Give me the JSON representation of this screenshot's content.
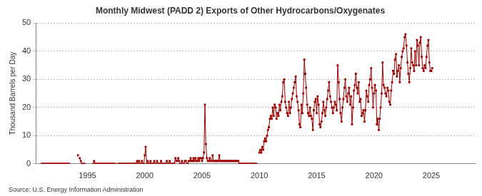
{
  "chart_data": {
    "type": "line",
    "title": "Monthly Midwest (PADD 2) Exports of Other Hydrocarbons/Oxygenates",
    "y_label": "Thousand Barrels per Day",
    "source": "Source: U.S. Energy Information Administration",
    "color": "#990000",
    "marker": "square",
    "grid": true,
    "xlim": [
      1990.5,
      2028.8
    ],
    "xticks": [
      1995,
      2000,
      2005,
      2010,
      2015,
      2020,
      2025
    ],
    "ylim": [
      0,
      50
    ],
    "yticks": [
      0,
      10,
      20,
      30,
      40,
      50
    ],
    "x": [
      1991.0,
      1991.08,
      1991.17,
      1991.25,
      1991.33,
      1991.42,
      1991.5,
      1991.58,
      1991.67,
      1991.75,
      1991.83,
      1991.92,
      1992.0,
      1992.08,
      1992.17,
      1992.25,
      1992.33,
      1992.42,
      1992.5,
      1992.58,
      1992.67,
      1992.75,
      1992.83,
      1992.92,
      1993.0,
      1993.08,
      1993.17,
      1993.25,
      1993.33,
      1993.42,
      1993.5,
      1993.58,
      1993.67,
      1993.75,
      1993.83,
      1993.92,
      1994.0,
      1994.08,
      1994.17,
      1994.25,
      1994.33,
      1994.42,
      1994.5,
      1994.58,
      1994.67,
      1994.75,
      1994.83,
      1994.92,
      1995.0,
      1995.08,
      1995.17,
      1995.25,
      1995.33,
      1995.42,
      1995.5,
      1995.58,
      1995.67,
      1995.75,
      1995.83,
      1995.92,
      1996.0,
      1996.08,
      1996.17,
      1996.25,
      1996.33,
      1996.42,
      1996.5,
      1996.58,
      1996.67,
      1996.75,
      1996.83,
      1996.92,
      1997.0,
      1997.08,
      1997.17,
      1997.25,
      1997.33,
      1997.42,
      1997.5,
      1997.58,
      1997.67,
      1997.75,
      1997.83,
      1997.92,
      1998.0,
      1998.08,
      1998.17,
      1998.25,
      1998.33,
      1998.42,
      1998.5,
      1998.58,
      1998.67,
      1998.75,
      1998.83,
      1998.92,
      1999.0,
      1999.08,
      1999.17,
      1999.25,
      1999.33,
      1999.42,
      1999.5,
      1999.58,
      1999.67,
      1999.75,
      1999.83,
      1999.92,
      2000.0,
      2000.08,
      2000.17,
      2000.25,
      2000.33,
      2000.42,
      2000.5,
      2000.58,
      2000.67,
      2000.75,
      2000.83,
      2000.92,
      2001.0,
      2001.08,
      2001.17,
      2001.25,
      2001.33,
      2001.42,
      2001.5,
      2001.58,
      2001.67,
      2001.75,
      2001.83,
      2001.92,
      2002.0,
      2002.08,
      2002.17,
      2002.25,
      2002.33,
      2002.42,
      2002.5,
      2002.58,
      2002.67,
      2002.75,
      2002.83,
      2002.92,
      2003.0,
      2003.08,
      2003.17,
      2003.25,
      2003.33,
      2003.42,
      2003.5,
      2003.58,
      2003.67,
      2003.75,
      2003.83,
      2003.92,
      2004.0,
      2004.08,
      2004.17,
      2004.25,
      2004.33,
      2004.42,
      2004.5,
      2004.58,
      2004.67,
      2004.75,
      2004.83,
      2004.92,
      2005.0,
      2005.08,
      2005.17,
      2005.25,
      2005.33,
      2005.42,
      2005.5,
      2005.58,
      2005.67,
      2005.75,
      2005.83,
      2005.92,
      2006.0,
      2006.08,
      2006.17,
      2006.25,
      2006.33,
      2006.42,
      2006.5,
      2006.58,
      2006.67,
      2006.75,
      2006.83,
      2006.92,
      2007.0,
      2007.08,
      2007.17,
      2007.25,
      2007.33,
      2007.42,
      2007.5,
      2007.58,
      2007.67,
      2007.75,
      2007.83,
      2007.92,
      2008.0,
      2008.08,
      2008.17,
      2008.25,
      2008.33,
      2008.42,
      2008.5,
      2008.58,
      2008.67,
      2008.75,
      2008.83,
      2008.92,
      2009.0,
      2009.08,
      2009.17,
      2009.25,
      2009.33,
      2009.42,
      2009.5,
      2009.58,
      2009.67,
      2009.75,
      2009.83,
      2009.92,
      2010.0,
      2010.08,
      2010.17,
      2010.25,
      2010.33,
      2010.42,
      2010.5,
      2010.58,
      2010.67,
      2010.75,
      2010.83,
      2010.92,
      2011.0,
      2011.08,
      2011.17,
      2011.25,
      2011.33,
      2011.42,
      2011.5,
      2011.58,
      2011.67,
      2011.75,
      2011.83,
      2011.92,
      2012.0,
      2012.08,
      2012.17,
      2012.25,
      2012.33,
      2012.42,
      2012.5,
      2012.58,
      2012.67,
      2012.75,
      2012.83,
      2012.92,
      2013.0,
      2013.08,
      2013.17,
      2013.25,
      2013.33,
      2013.42,
      2013.5,
      2013.58,
      2013.67,
      2013.75,
      2013.83,
      2013.92,
      2014.0,
      2014.08,
      2014.17,
      2014.25,
      2014.33,
      2014.42,
      2014.5,
      2014.58,
      2014.67,
      2014.75,
      2014.83,
      2014.92,
      2015.0,
      2015.08,
      2015.17,
      2015.25,
      2015.33,
      2015.42,
      2015.5,
      2015.58,
      2015.67,
      2015.75,
      2015.83,
      2015.92,
      2016.0,
      2016.08,
      2016.17,
      2016.25,
      2016.33,
      2016.42,
      2016.5,
      2016.58,
      2016.67,
      2016.75,
      2016.83,
      2016.92,
      2017.0,
      2017.08,
      2017.17,
      2017.25,
      2017.33,
      2017.42,
      2017.5,
      2017.58,
      2017.67,
      2017.75,
      2017.83,
      2017.92,
      2018.0,
      2018.08,
      2018.17,
      2018.25,
      2018.33,
      2018.42,
      2018.5,
      2018.58,
      2018.67,
      2018.75,
      2018.83,
      2018.92,
      2019.0,
      2019.08,
      2019.17,
      2019.25,
      2019.33,
      2019.42,
      2019.5,
      2019.58,
      2019.67,
      2019.75,
      2019.83,
      2019.92,
      2020.0,
      2020.08,
      2020.17,
      2020.25,
      2020.33,
      2020.42,
      2020.5,
      2020.58,
      2020.67,
      2020.75,
      2020.83,
      2020.92,
      2021.0,
      2021.08,
      2021.17,
      2021.25,
      2021.33,
      2021.42,
      2021.5,
      2021.58,
      2021.67,
      2021.75,
      2021.83,
      2021.92,
      2022.0,
      2022.08,
      2022.17,
      2022.25,
      2022.33,
      2022.42,
      2022.5,
      2022.58,
      2022.67,
      2022.75,
      2022.83,
      2022.92,
      2023.0,
      2023.08,
      2023.17,
      2023.25,
      2023.33,
      2023.42,
      2023.5,
      2023.58,
      2023.67,
      2023.75,
      2023.83,
      2023.92,
      2024.0,
      2024.08,
      2024.17,
      2024.25,
      2024.33,
      2024.42,
      2024.5,
      2024.58,
      2024.67,
      2024.75,
      2024.83,
      2024.92,
      2025.0,
      2025.08
    ],
    "values": [
      0,
      0,
      0,
      0,
      0,
      0,
      0,
      0,
      0,
      0,
      0,
      0,
      0,
      0,
      0,
      0,
      0,
      0,
      0,
      0,
      0,
      0,
      0,
      0,
      0,
      0,
      0,
      0,
      0,
      0,
      null,
      null,
      null,
      null,
      null,
      null,
      null,
      null,
      3,
      null,
      2,
      1,
      0,
      0,
      0,
      0,
      null,
      null,
      null,
      null,
      null,
      null,
      null,
      null,
      0,
      1,
      0,
      0,
      0,
      0,
      0,
      0,
      0,
      0,
      0,
      0,
      0,
      0,
      0,
      0,
      0,
      0,
      0,
      0,
      0,
      0,
      0,
      0,
      null,
      null,
      0,
      0,
      0,
      0,
      0,
      0,
      0,
      0,
      0,
      0,
      0,
      0,
      0,
      0,
      0,
      0,
      0,
      0,
      0,
      0,
      1,
      0,
      1,
      0,
      0,
      1,
      0,
      0,
      3,
      6,
      0,
      1,
      0,
      0,
      1,
      0,
      0,
      0,
      1,
      0,
      0,
      1,
      0,
      0,
      0,
      1,
      0,
      0,
      0,
      0,
      0,
      1,
      0,
      0,
      1,
      0,
      0,
      0,
      0,
      0,
      2,
      1,
      1,
      2,
      1,
      0,
      0,
      1,
      0,
      0,
      1,
      1,
      0,
      0,
      1,
      1,
      2,
      1,
      1,
      2,
      1,
      2,
      1,
      1,
      2,
      1,
      2,
      2,
      1,
      2,
      4,
      21,
      7,
      2,
      1,
      1,
      2,
      1,
      1,
      3,
      1,
      1,
      1,
      1,
      1,
      1,
      3,
      1,
      1,
      1,
      1,
      1,
      1,
      1,
      1,
      1,
      1,
      1,
      1,
      1,
      1,
      1,
      1,
      1,
      1,
      1,
      1,
      0,
      0,
      0,
      0,
      0,
      0,
      0,
      0,
      0,
      0,
      0,
      0,
      0,
      0,
      0,
      0,
      0,
      0,
      0,
      null,
      null,
      4,
      5,
      4,
      6,
      5,
      8,
      9,
      8,
      10,
      12,
      13,
      16,
      17,
      16,
      20,
      17,
      21,
      20,
      16,
      18,
      17,
      21,
      19,
      22,
      24,
      29,
      30,
      22,
      20,
      18,
      17,
      22,
      18,
      20,
      23,
      25,
      27,
      29,
      31,
      24,
      22,
      19,
      14,
      13,
      21,
      18,
      25,
      37,
      32,
      27,
      21,
      18,
      17,
      20,
      17,
      16,
      12,
      19,
      22,
      23,
      18,
      24,
      21,
      14,
      13,
      15,
      18,
      22,
      19,
      17,
      20,
      23,
      26,
      29,
      24,
      22,
      20,
      18,
      20,
      22,
      21,
      19,
      35,
      29,
      23,
      18,
      15,
      20,
      23,
      27,
      30,
      24,
      22,
      25,
      27,
      21,
      24,
      14,
      20,
      26,
      28,
      32,
      27,
      25,
      29,
      22,
      23,
      17,
      18,
      19,
      15,
      19,
      26,
      24,
      22,
      28,
      30,
      34,
      27,
      20,
      25,
      28,
      26,
      14,
      16,
      12,
      16,
      20,
      25,
      36,
      28,
      27,
      25,
      24,
      27,
      26,
      22,
      21,
      26,
      29,
      33,
      32,
      37,
      39,
      31,
      33,
      35,
      29,
      34,
      38,
      40,
      41,
      45,
      46,
      42,
      36,
      32,
      29,
      34,
      41,
      36,
      35,
      33,
      40,
      35,
      44,
      42,
      35,
      43,
      45,
      38,
      34,
      33,
      35,
      34,
      38,
      42,
      44,
      36,
      33,
      33,
      34
    ]
  }
}
